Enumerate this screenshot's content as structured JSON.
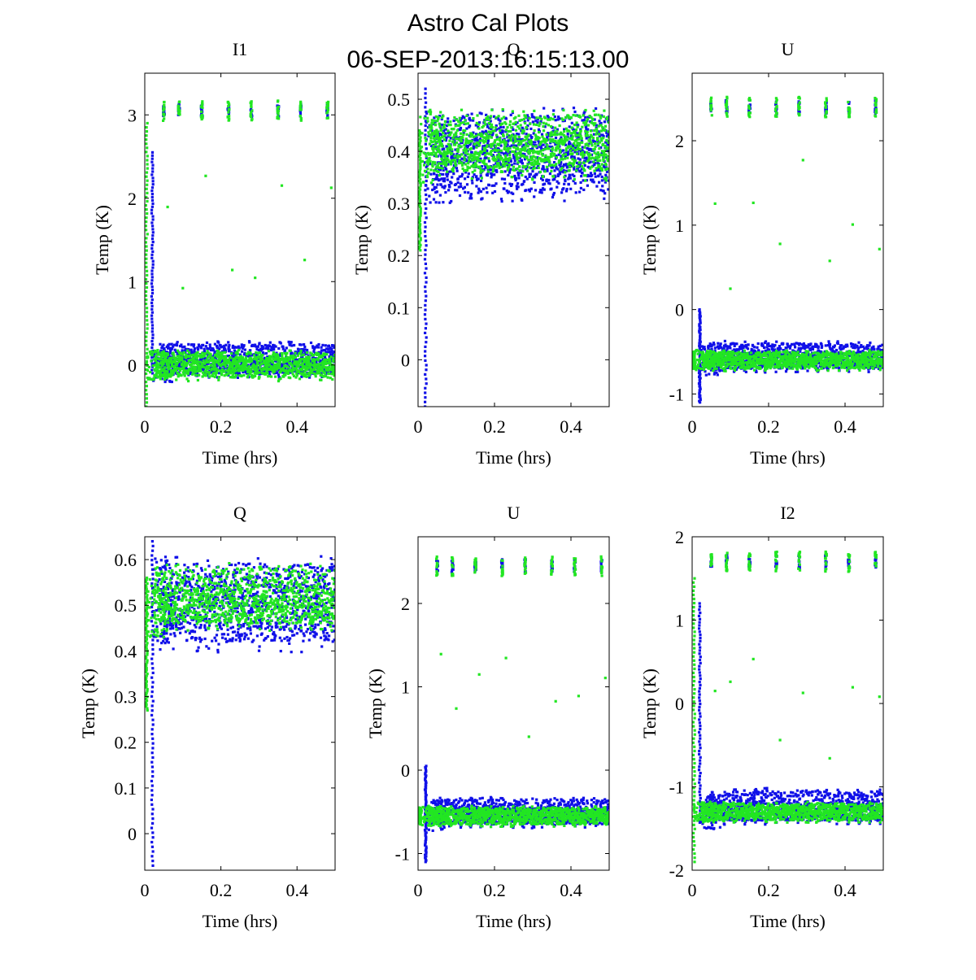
{
  "figure": {
    "title_line1": "Astro Cal Plots",
    "title_line2": "06-SEP-2013:16:15:13.00"
  },
  "colors": {
    "series_blue": "#1010e8",
    "series_green": "#22e622",
    "axes": "#000000"
  },
  "chart_data": [
    {
      "type": "scatter",
      "title": "I1",
      "xlabel": "Time (hrs)",
      "ylabel": "Temp (K)",
      "xlim": [
        0,
        0.5
      ],
      "ylim": [
        -0.5,
        3.5
      ],
      "xticks": [
        0,
        0.2,
        0.4
      ],
      "yticks": [
        0,
        1,
        2,
        3
      ],
      "series": [
        {
          "color": "blue",
          "baseline": 0.0,
          "band_lo": -0.1,
          "band_hi": 0.25,
          "spike_t": 0.02,
          "spike_lo": -0.1,
          "spike_hi": 2.55,
          "clusters": [
            0.05,
            0.09,
            0.15,
            0.22,
            0.28,
            0.35,
            0.41,
            0.48
          ],
          "cluster_y": 3.05,
          "cluster_spread": 0.08
        },
        {
          "color": "green",
          "baseline": 0.0,
          "band_lo": -0.15,
          "band_hi": 0.15,
          "spike_t": 0.005,
          "spike_lo": -0.5,
          "spike_hi": 2.9,
          "clusters": [
            0.05,
            0.09,
            0.15,
            0.22,
            0.28,
            0.35,
            0.41,
            0.48
          ],
          "cluster_y": 3.05,
          "cluster_spread": 0.12
        }
      ]
    },
    {
      "type": "scatter",
      "title": "Q",
      "xlabel": "Time (hrs)",
      "ylabel": "Temp (K)",
      "xlim": [
        0,
        0.5
      ],
      "ylim": [
        -0.09,
        0.55
      ],
      "xticks": [
        0,
        0.2,
        0.4
      ],
      "yticks": [
        0,
        0.1,
        0.2,
        0.3,
        0.4,
        0.5
      ],
      "series": [
        {
          "color": "blue",
          "baseline": 0.39,
          "band_lo": 0.32,
          "band_hi": 0.47,
          "spike_t": 0.02,
          "spike_lo": -0.09,
          "spike_hi": 0.52,
          "clusters": [],
          "cluster_y": 0,
          "cluster_spread": 0
        },
        {
          "color": "green",
          "baseline": 0.4,
          "band_lo": 0.36,
          "band_hi": 0.47,
          "spike_t": 0.005,
          "spike_lo": 0.21,
          "spike_hi": 0.44,
          "clusters": [],
          "cluster_y": 0,
          "cluster_spread": 0
        }
      ]
    },
    {
      "type": "scatter",
      "title": "U",
      "xlabel": "Time (hrs)",
      "ylabel": "Temp (K)",
      "xlim": [
        0,
        0.5
      ],
      "ylim": [
        -1.15,
        2.8
      ],
      "xticks": [
        0,
        0.2,
        0.4
      ],
      "yticks": [
        -1,
        0,
        1,
        2
      ],
      "series": [
        {
          "color": "blue",
          "baseline": -0.6,
          "band_lo": -0.7,
          "band_hi": -0.4,
          "spike_t": 0.02,
          "spike_lo": -1.1,
          "spike_hi": 0.0,
          "clusters": [
            0.05,
            0.09,
            0.15,
            0.22,
            0.28,
            0.35,
            0.41,
            0.48
          ],
          "cluster_y": 2.4,
          "cluster_spread": 0.08
        },
        {
          "color": "green",
          "baseline": -0.6,
          "band_lo": -0.7,
          "band_hi": -0.5,
          "spike_t": 0.005,
          "spike_lo": -0.7,
          "spike_hi": -0.5,
          "clusters": [
            0.05,
            0.09,
            0.15,
            0.22,
            0.28,
            0.35,
            0.41,
            0.48
          ],
          "cluster_y": 2.4,
          "cluster_spread": 0.12
        }
      ]
    },
    {
      "type": "scatter",
      "title": "Q",
      "xlabel": "Time (hrs)",
      "ylabel": "Temp (K)",
      "xlim": [
        0,
        0.5
      ],
      "ylim": [
        -0.08,
        0.65
      ],
      "xticks": [
        0,
        0.2,
        0.4
      ],
      "yticks": [
        0,
        0.1,
        0.2,
        0.3,
        0.4,
        0.5,
        0.6
      ],
      "series": [
        {
          "color": "blue",
          "baseline": 0.5,
          "band_lo": 0.42,
          "band_hi": 0.59,
          "spike_t": 0.02,
          "spike_lo": -0.07,
          "spike_hi": 0.64,
          "clusters": [],
          "cluster_y": 0,
          "cluster_spread": 0
        },
        {
          "color": "green",
          "baseline": 0.5,
          "band_lo": 0.46,
          "band_hi": 0.58,
          "spike_t": 0.005,
          "spike_lo": 0.27,
          "spike_hi": 0.56,
          "clusters": [],
          "cluster_y": 0,
          "cluster_spread": 0
        }
      ]
    },
    {
      "type": "scatter",
      "title": "U",
      "xlabel": "Time (hrs)",
      "ylabel": "Temp (K)",
      "xlim": [
        0,
        0.5
      ],
      "ylim": [
        -1.2,
        2.8
      ],
      "xticks": [
        0,
        0.2,
        0.4
      ],
      "yticks": [
        -1,
        0,
        1,
        2
      ],
      "series": [
        {
          "color": "blue",
          "baseline": -0.55,
          "band_lo": -0.65,
          "band_hi": -0.35,
          "spike_t": 0.02,
          "spike_lo": -1.1,
          "spike_hi": 0.05,
          "clusters": [
            0.05,
            0.09,
            0.15,
            0.22,
            0.28,
            0.35,
            0.41,
            0.48
          ],
          "cluster_y": 2.45,
          "cluster_spread": 0.08
        },
        {
          "color": "green",
          "baseline": -0.55,
          "band_lo": -0.65,
          "band_hi": -0.45,
          "spike_t": 0.005,
          "spike_lo": -0.65,
          "spike_hi": -0.45,
          "clusters": [
            0.05,
            0.09,
            0.15,
            0.22,
            0.28,
            0.35,
            0.41,
            0.48
          ],
          "cluster_y": 2.45,
          "cluster_spread": 0.12
        }
      ]
    },
    {
      "type": "scatter",
      "title": "I2",
      "xlabel": "Time (hrs)",
      "ylabel": "Temp (K)",
      "xlim": [
        0,
        0.5
      ],
      "ylim": [
        -2.0,
        2.0
      ],
      "xticks": [
        0,
        0.2,
        0.4
      ],
      "yticks": [
        -2,
        -1,
        0,
        1,
        2
      ],
      "series": [
        {
          "color": "blue",
          "baseline": -1.3,
          "band_lo": -1.4,
          "band_hi": -1.05,
          "spike_t": 0.02,
          "spike_lo": -1.4,
          "spike_hi": 1.2,
          "clusters": [
            0.05,
            0.09,
            0.15,
            0.22,
            0.28,
            0.35,
            0.41,
            0.48
          ],
          "cluster_y": 1.7,
          "cluster_spread": 0.08
        },
        {
          "color": "green",
          "baseline": -1.3,
          "band_lo": -1.4,
          "band_hi": -1.2,
          "spike_t": 0.005,
          "spike_lo": -1.9,
          "spike_hi": 1.5,
          "clusters": [
            0.05,
            0.09,
            0.15,
            0.22,
            0.28,
            0.35,
            0.41,
            0.48
          ],
          "cluster_y": 1.7,
          "cluster_spread": 0.12
        }
      ]
    }
  ]
}
